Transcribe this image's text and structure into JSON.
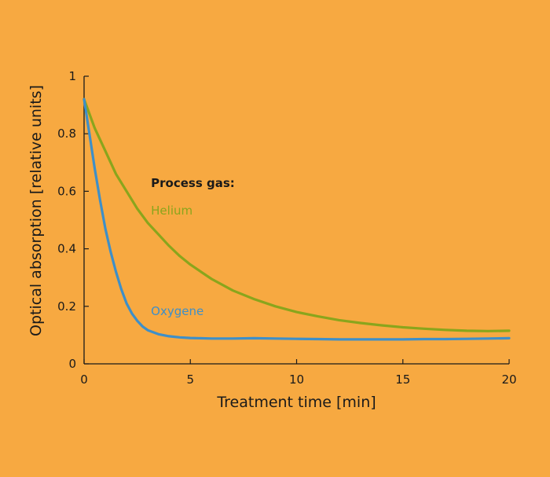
{
  "colors": {
    "background": "#F7A941",
    "axis": "#1a1a1a",
    "helium": "#8AA51C",
    "oxygene": "#3E8FC8"
  },
  "chart_data": {
    "type": "line",
    "xlabel": "Treatment time [min]",
    "ylabel": "Optical absorption [relative units]",
    "xlim": [
      0,
      20
    ],
    "ylim": [
      0,
      1
    ],
    "grid": false,
    "x_ticks": [
      {
        "value": 0,
        "label": "0"
      },
      {
        "value": 5,
        "label": "5"
      },
      {
        "value": 10,
        "label": "10"
      },
      {
        "value": 15,
        "label": "15"
      },
      {
        "value": 20,
        "label": "20"
      }
    ],
    "y_ticks": [
      {
        "value": 0,
        "label": "0"
      },
      {
        "value": 0.2,
        "label": "0.2"
      },
      {
        "value": 0.4,
        "label": "0.4"
      },
      {
        "value": 0.6,
        "label": "0.6"
      },
      {
        "value": 0.8,
        "label": "0.8"
      },
      {
        "value": 1,
        "label": "1"
      }
    ],
    "annotation": {
      "text": "Process gas:",
      "x": 3,
      "y": 0.62
    },
    "series": [
      {
        "name": "Helium",
        "color": "#8AA51C",
        "label_pos": {
          "x": 3,
          "y": 0.5
        },
        "x": [
          0,
          0.5,
          1,
          1.5,
          2,
          2.5,
          3,
          3.5,
          4,
          4.5,
          5,
          6,
          7,
          8,
          9,
          10,
          11,
          12,
          13,
          14,
          15,
          16,
          17,
          18,
          19,
          20
        ],
        "y": [
          0.92,
          0.82,
          0.74,
          0.66,
          0.6,
          0.54,
          0.49,
          0.45,
          0.41,
          0.375,
          0.345,
          0.295,
          0.255,
          0.225,
          0.2,
          0.18,
          0.165,
          0.152,
          0.142,
          0.134,
          0.127,
          0.122,
          0.118,
          0.115,
          0.114,
          0.115
        ]
      },
      {
        "name": "Oxygene",
        "color": "#3E8FC8",
        "label_pos": {
          "x": 3,
          "y": 0.15
        },
        "x": [
          0,
          0.25,
          0.5,
          0.75,
          1,
          1.25,
          1.5,
          1.75,
          2,
          2.25,
          2.5,
          2.75,
          3,
          3.5,
          4,
          4.5,
          5,
          6,
          7,
          8,
          9,
          10,
          11,
          12,
          13,
          14,
          15,
          16,
          17,
          18,
          19,
          20
        ],
        "y": [
          0.92,
          0.8,
          0.68,
          0.57,
          0.47,
          0.39,
          0.32,
          0.26,
          0.21,
          0.175,
          0.15,
          0.13,
          0.117,
          0.103,
          0.096,
          0.092,
          0.09,
          0.088,
          0.088,
          0.089,
          0.088,
          0.087,
          0.086,
          0.085,
          0.085,
          0.085,
          0.085,
          0.086,
          0.086,
          0.087,
          0.088,
          0.089
        ]
      }
    ]
  }
}
